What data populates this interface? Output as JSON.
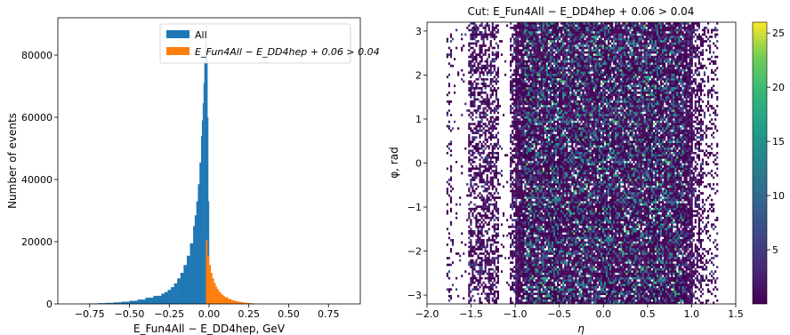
{
  "chart_data": [
    {
      "type": "bar",
      "subtype": "histogram",
      "title": "",
      "xlabel": "E_Fun4All − E_DD4hep, GeV",
      "ylabel": "Number of events",
      "xlim": [
        -0.95,
        0.95
      ],
      "ylim": [
        0,
        92000
      ],
      "xticks": [
        "−0.75",
        "−0.50",
        "−0.25",
        "0.00",
        "0.25",
        "0.50",
        "0.75"
      ],
      "yticks": [
        "0",
        "20000",
        "40000",
        "60000",
        "80000"
      ],
      "legend_position": "top-right",
      "series": [
        {
          "name": "All",
          "color": "#1f77b4",
          "x": [
            -0.78,
            -0.75,
            -0.7,
            -0.65,
            -0.6,
            -0.55,
            -0.5,
            -0.45,
            -0.4,
            -0.35,
            -0.3,
            -0.28,
            -0.26,
            -0.24,
            -0.22,
            -0.2,
            -0.18,
            -0.16,
            -0.14,
            -0.12,
            -0.1,
            -0.09,
            -0.08,
            -0.07,
            -0.06,
            -0.05,
            -0.045,
            -0.04,
            -0.035,
            -0.03,
            -0.025,
            -0.02,
            -0.015,
            -0.01,
            -0.005
          ],
          "values": [
            100,
            150,
            250,
            350,
            500,
            700,
            1000,
            1400,
            2000,
            2600,
            3300,
            3800,
            4500,
            5400,
            6600,
            8200,
            10000,
            12500,
            15500,
            19500,
            25000,
            28500,
            33000,
            38500,
            45500,
            54000,
            59000,
            64500,
            71000,
            77500,
            84000,
            89500,
            80000,
            60000,
            33000
          ]
        },
        {
          "name": "E_Fun4All − E_DD4hep + 0.06 > 0.04",
          "color": "#ff7f0e",
          "x": [
            -0.02,
            -0.01,
            0.0,
            0.01,
            0.02,
            0.03,
            0.04,
            0.05,
            0.06,
            0.07,
            0.08,
            0.09,
            0.1,
            0.12,
            0.14,
            0.16,
            0.18,
            0.2,
            0.22,
            0.24,
            0.26,
            0.28
          ],
          "values": [
            20500,
            15500,
            12500,
            10000,
            8200,
            6800,
            5600,
            4700,
            4000,
            3400,
            2900,
            2500,
            2100,
            1600,
            1200,
            900,
            700,
            500,
            380,
            280,
            200,
            120
          ]
        }
      ]
    },
    {
      "type": "heatmap",
      "title": "Cut: E_Fun4All − E_DD4hep + 0.06 > 0.04",
      "xlabel": "η",
      "ylabel": "φ, rad",
      "xlim": [
        -2.0,
        1.5
      ],
      "ylim": [
        -3.2,
        3.2
      ],
      "xticks": [
        "−2.0",
        "−1.5",
        "−1.0",
        "−0.5",
        "0.0",
        "0.5",
        "1.0",
        "1.5"
      ],
      "yticks": [
        "−3",
        "−2",
        "−1",
        "0",
        "1",
        "2",
        "3"
      ],
      "colormap": "viridis",
      "colorbar_range": [
        0,
        26
      ],
      "colorbar_ticks": [
        "5",
        "10",
        "15",
        "20",
        "25"
      ],
      "eta_coverage": [
        -1.78,
        1.3
      ],
      "eta_gaps": [
        [
          -1.72,
          -1.55
        ],
        [
          -1.2,
          -1.08
        ]
      ]
    }
  ]
}
